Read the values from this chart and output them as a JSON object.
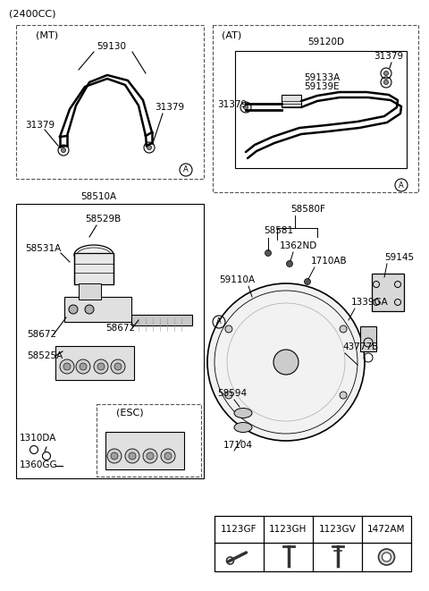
{
  "title": "(2400CC)",
  "bg_color": "#ffffff",
  "line_color": "#000000",
  "text_color": "#000000",
  "gray_color": "#888888",
  "light_gray": "#cccccc",
  "box_gray": "#aaaaaa",
  "mt_label": "(MT)",
  "at_label": "(AT)",
  "esc_label": "(ESC)",
  "legend_codes": [
    "1123GF",
    "1123GH",
    "1123GV",
    "1472AM"
  ],
  "circle_a_label": "A"
}
